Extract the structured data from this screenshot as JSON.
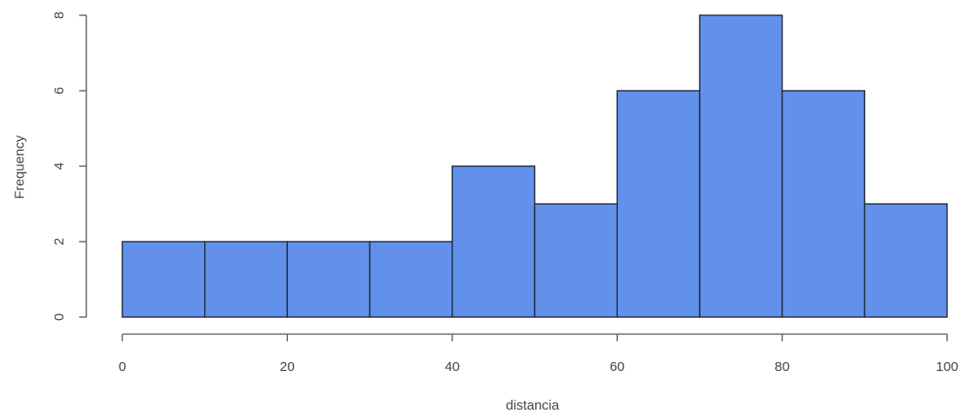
{
  "chart_data": {
    "type": "bar",
    "title": "",
    "xlabel": "distancia",
    "ylabel": "Frequency",
    "bins": [
      {
        "from": 0,
        "to": 10,
        "count": 2
      },
      {
        "from": 10,
        "to": 20,
        "count": 2
      },
      {
        "from": 20,
        "to": 30,
        "count": 2
      },
      {
        "from": 30,
        "to": 40,
        "count": 2
      },
      {
        "from": 40,
        "to": 50,
        "count": 4
      },
      {
        "from": 50,
        "to": 60,
        "count": 3
      },
      {
        "from": 60,
        "to": 70,
        "count": 6
      },
      {
        "from": 70,
        "to": 80,
        "count": 8
      },
      {
        "from": 80,
        "to": 90,
        "count": 6
      },
      {
        "from": 90,
        "to": 100,
        "count": 3
      }
    ],
    "xlim": [
      0,
      100
    ],
    "ylim": [
      0,
      8
    ],
    "xticks": [
      0,
      20,
      40,
      60,
      80,
      100
    ],
    "yticks": [
      0,
      2,
      4,
      6,
      8
    ],
    "bar_color": "#6191EB",
    "grid": false
  }
}
